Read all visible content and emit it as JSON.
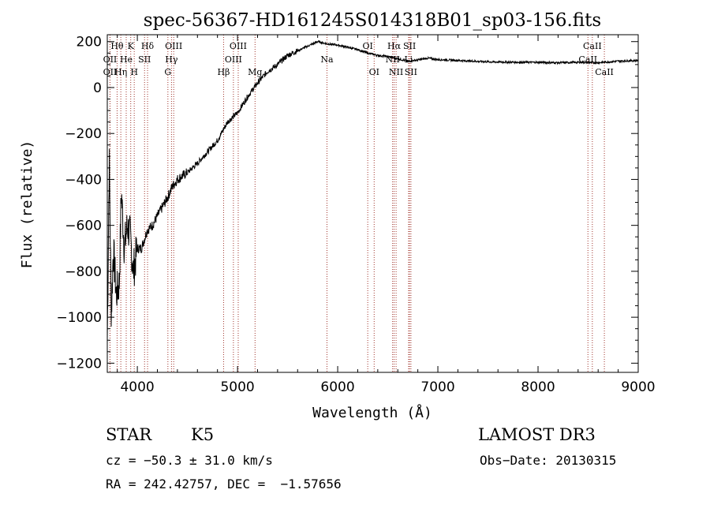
{
  "chart_data": {
    "type": "line",
    "title": "spec-56367-HD161245S014318B01_sp03-156.fits",
    "xlabel": "Wavelength (Å)",
    "ylabel": "Flux (relative)",
    "xlim": [
      3700,
      9000
    ],
    "ylim": [
      -1240,
      230
    ],
    "x_ticks": [
      4000,
      5000,
      6000,
      7000,
      8000,
      9000
    ],
    "x_tick_labels": [
      "4000",
      "5000",
      "6000",
      "7000",
      "8000",
      "9000"
    ],
    "y_ticks": [
      -1200,
      -1000,
      -800,
      -600,
      -400,
      -200,
      0,
      200
    ],
    "y_tick_labels": [
      "−1200",
      "−1000",
      "−800",
      "−600",
      "−400",
      "−200",
      "0",
      "200"
    ],
    "spectrum_anchors": [
      [
        3700,
        -1100
      ],
      [
        3720,
        -300
      ],
      [
        3740,
        -1000
      ],
      [
        3760,
        -700
      ],
      [
        3790,
        -900
      ],
      [
        3820,
        -850
      ],
      [
        3840,
        -450
      ],
      [
        3870,
        -700
      ],
      [
        3900,
        -600
      ],
      [
        3930,
        -650
      ],
      [
        3960,
        -800
      ],
      [
        4000,
        -700
      ],
      [
        4040,
        -700
      ],
      [
        4100,
        -620
      ],
      [
        4150,
        -600
      ],
      [
        4200,
        -560
      ],
      [
        4250,
        -520
      ],
      [
        4300,
        -480
      ],
      [
        4350,
        -430
      ],
      [
        4400,
        -400
      ],
      [
        4500,
        -370
      ],
      [
        4600,
        -330
      ],
      [
        4700,
        -280
      ],
      [
        4800,
        -230
      ],
      [
        4900,
        -150
      ],
      [
        5000,
        -110
      ],
      [
        5100,
        -40
      ],
      [
        5200,
        20
      ],
      [
        5300,
        70
      ],
      [
        5400,
        100
      ],
      [
        5500,
        140
      ],
      [
        5600,
        160
      ],
      [
        5700,
        180
      ],
      [
        5800,
        200
      ],
      [
        5900,
        190
      ],
      [
        6000,
        185
      ],
      [
        6100,
        175
      ],
      [
        6200,
        165
      ],
      [
        6300,
        150
      ],
      [
        6400,
        140
      ],
      [
        6500,
        135
      ],
      [
        6600,
        125
      ],
      [
        6700,
        115
      ],
      [
        6800,
        120
      ],
      [
        6900,
        128
      ],
      [
        7000,
        122
      ],
      [
        7200,
        118
      ],
      [
        7500,
        112
      ],
      [
        7800,
        110
      ],
      [
        8000,
        110
      ],
      [
        8200,
        108
      ],
      [
        8400,
        110
      ],
      [
        8600,
        108
      ],
      [
        8800,
        115
      ],
      [
        9000,
        118
      ]
    ],
    "spectral_lines": [
      {
        "name": "OII",
        "wavelength": 3727,
        "row": 2
      },
      {
        "name": "Hθ",
        "wavelength": 3798,
        "row": 1
      },
      {
        "name": "OII",
        "wavelength": 3727,
        "row": 3
      },
      {
        "name": "Hη",
        "wavelength": 3835,
        "row": 3
      },
      {
        "name": "He",
        "wavelength": 3889,
        "row": 2
      },
      {
        "name": "K",
        "wavelength": 3934,
        "row": 1
      },
      {
        "name": "H",
        "wavelength": 3969,
        "row": 3
      },
      {
        "name": "SII",
        "wavelength": 4072,
        "row": 2
      },
      {
        "name": "Hδ",
        "wavelength": 4102,
        "row": 1
      },
      {
        "name": "OIII",
        "wavelength": 4363,
        "row": 1
      },
      {
        "name": "Hγ",
        "wavelength": 4341,
        "row": 2
      },
      {
        "name": "G",
        "wavelength": 4305,
        "row": 3
      },
      {
        "name": "Hβ",
        "wavelength": 4861,
        "row": 3
      },
      {
        "name": "OIII",
        "wavelength": 5007,
        "row": 1
      },
      {
        "name": "OIII",
        "wavelength": 4959,
        "row": 2
      },
      {
        "name": "Mg",
        "wavelength": 5175,
        "row": 3
      },
      {
        "name": "Na",
        "wavelength": 5893,
        "row": 2
      },
      {
        "name": "OI",
        "wavelength": 6300,
        "row": 1
      },
      {
        "name": "OI",
        "wavelength": 6364,
        "row": 3
      },
      {
        "name": "Hα",
        "wavelength": 6563,
        "row": 1
      },
      {
        "name": "NII",
        "wavelength": 6548,
        "row": 2
      },
      {
        "name": "NII",
        "wavelength": 6583,
        "row": 3
      },
      {
        "name": "SII",
        "wavelength": 6717,
        "row": 1
      },
      {
        "name": "Li",
        "wavelength": 6708,
        "row": 2
      },
      {
        "name": "SII",
        "wavelength": 6731,
        "row": 3
      },
      {
        "name": "CaII",
        "wavelength": 8542,
        "row": 1
      },
      {
        "name": "CaII",
        "wavelength": 8498,
        "row": 2
      },
      {
        "name": "CaII",
        "wavelength": 8662,
        "row": 3
      }
    ]
  },
  "info": {
    "object_class": "STAR",
    "subclass": "K5",
    "survey": "LAMOST DR3",
    "redshift": "cz = −50.3 ± 31.0 km/s",
    "obs_date": "Obs−Date: 20130315",
    "coords": "RA = 242.42757, DEC =  −1.57656"
  }
}
